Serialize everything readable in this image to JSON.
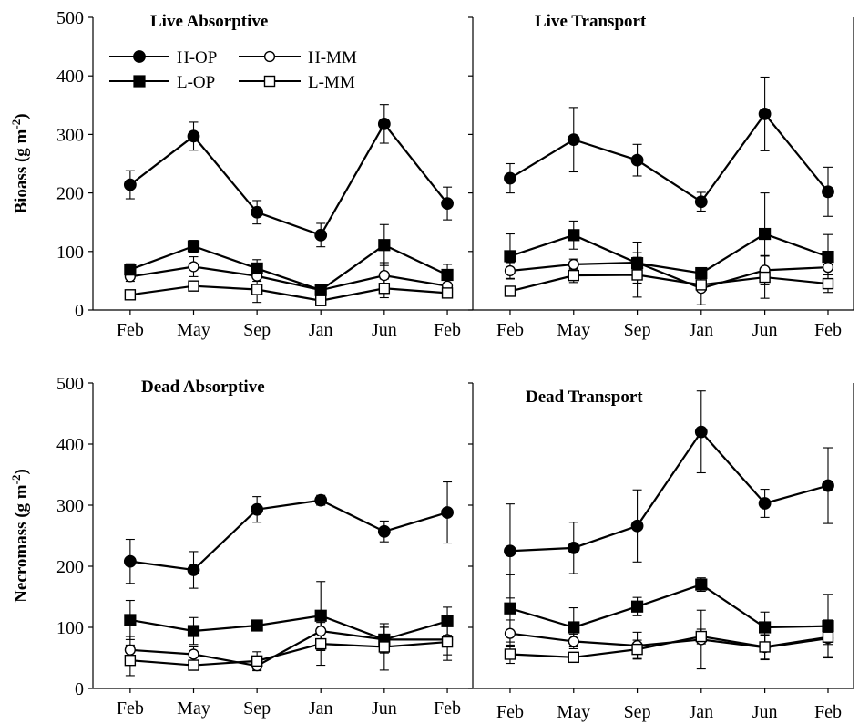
{
  "chart_data": [
    {
      "type": "line",
      "title": "Live Absorptive",
      "ylabel": "Bioass (g m-2)",
      "ylim": [
        0,
        500
      ],
      "yticks": [
        0,
        100,
        200,
        300,
        400,
        500
      ],
      "categories": [
        "Feb",
        "May",
        "Sep",
        "Jan",
        "Jun",
        "Feb"
      ],
      "legend": "top-left",
      "series": [
        {
          "name": "H-OP",
          "marker": "filled-circle",
          "values": [
            214,
            297,
            167,
            128,
            318,
            182
          ],
          "errors": [
            24,
            24,
            20,
            20,
            33,
            28
          ]
        },
        {
          "name": "H-MM",
          "marker": "open-circle",
          "values": [
            57,
            74,
            58,
            34,
            59,
            41
          ],
          "errors": [
            8,
            17,
            9,
            4,
            22,
            10
          ]
        },
        {
          "name": "L-OP",
          "marker": "filled-square",
          "values": [
            69,
            109,
            71,
            34,
            111,
            60
          ],
          "errors": [
            10,
            10,
            15,
            5,
            35,
            18
          ]
        },
        {
          "name": "L-MM",
          "marker": "open-square",
          "values": [
            26,
            41,
            35,
            16,
            37,
            29
          ],
          "errors": [
            5,
            5,
            22,
            4,
            16,
            8
          ]
        }
      ]
    },
    {
      "type": "line",
      "title": "Live Transport",
      "ylim": [
        0,
        500
      ],
      "categories": [
        "Feb",
        "May",
        "Sep",
        "Jan",
        "Jun",
        "Feb"
      ],
      "series": [
        {
          "name": "H-OP",
          "marker": "filled-circle",
          "values": [
            225,
            291,
            256,
            185,
            335,
            202
          ],
          "errors": [
            25,
            55,
            27,
            16,
            63,
            42
          ]
        },
        {
          "name": "H-MM",
          "marker": "open-circle",
          "values": [
            67,
            78,
            81,
            37,
            68,
            73
          ],
          "errors": [
            14,
            9,
            35,
            28,
            25,
            12
          ]
        },
        {
          "name": "L-OP",
          "marker": "filled-square",
          "values": [
            92,
            128,
            80,
            63,
            130,
            91
          ],
          "errors": [
            38,
            24,
            10,
            6,
            70,
            38
          ]
        },
        {
          "name": "L-MM",
          "marker": "open-square",
          "values": [
            32,
            59,
            60,
            43,
            56,
            45
          ],
          "errors": [
            6,
            12,
            38,
            8,
            36,
            15
          ]
        }
      ]
    },
    {
      "type": "line",
      "title": "Dead Absorptive",
      "ylabel": "Necromass (g m-2)",
      "ylim": [
        0,
        500
      ],
      "yticks": [
        0,
        100,
        200,
        300,
        400,
        500
      ],
      "categories": [
        "Feb",
        "May",
        "Sep",
        "Jan",
        "Jun",
        "Feb"
      ],
      "series": [
        {
          "name": "H-OP",
          "marker": "filled-circle",
          "values": [
            208,
            194,
            293,
            308,
            257,
            288
          ],
          "errors": [
            36,
            30,
            21,
            8,
            17,
            50
          ]
        },
        {
          "name": "H-MM",
          "marker": "open-circle",
          "values": [
            63,
            56,
            37,
            94,
            80,
            80
          ],
          "errors": [
            22,
            12,
            8,
            32,
            20,
            25
          ]
        },
        {
          "name": "L-OP",
          "marker": "filled-square",
          "values": [
            112,
            94,
            103,
            119,
            80,
            110
          ],
          "errors": [
            32,
            22,
            8,
            56,
            22,
            23
          ]
        },
        {
          "name": "L-MM",
          "marker": "open-square",
          "values": [
            46,
            38,
            45,
            73,
            68,
            76
          ],
          "errors": [
            25,
            8,
            15,
            35,
            38,
            30
          ]
        }
      ]
    },
    {
      "type": "line",
      "title": "Dead Transport",
      "ylim": [
        0,
        500
      ],
      "categories": [
        "Feb",
        "May",
        "Sep",
        "Jan",
        "Jun",
        "Feb"
      ],
      "series": [
        {
          "name": "H-OP",
          "marker": "filled-circle",
          "values": [
            225,
            230,
            266,
            420,
            303,
            332
          ],
          "errors": [
            77,
            42,
            59,
            67,
            23,
            62
          ]
        },
        {
          "name": "H-MM",
          "marker": "open-circle",
          "values": [
            90,
            77,
            70,
            80,
            67,
            82
          ],
          "errors": [
            22,
            12,
            22,
            48,
            20,
            30
          ]
        },
        {
          "name": "L-OP",
          "marker": "filled-square",
          "values": [
            131,
            100,
            134,
            170,
            100,
            102
          ],
          "errors": [
            55,
            32,
            15,
            11,
            25,
            52
          ]
        },
        {
          "name": "L-MM",
          "marker": "open-square",
          "values": [
            56,
            51,
            64,
            85,
            68,
            84
          ],
          "errors": [
            15,
            8,
            15,
            12,
            20,
            12
          ]
        }
      ]
    }
  ]
}
